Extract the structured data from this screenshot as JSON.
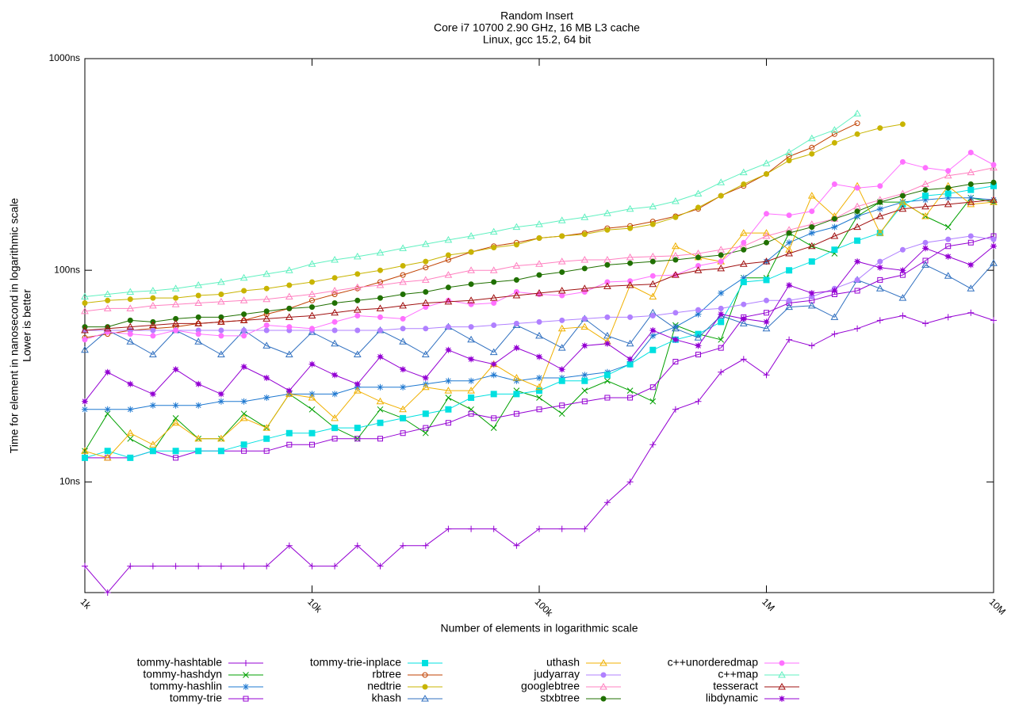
{
  "chart_data": {
    "type": "line",
    "title": "Random Insert",
    "subtitle": [
      "Core i7 10700 2.90 GHz, 16 MB L3 cache",
      "Linux, gcc 15.2, 64 bit"
    ],
    "ylabel": [
      "Time for element in nanosecond in logarithmic scale",
      "Lower is better"
    ],
    "xlabel": "Number of elements in logarithmic scale",
    "xscale": "log",
    "yscale": "log",
    "xlim": [
      1000,
      10000000
    ],
    "ylim": [
      3,
      1000
    ],
    "xticks": [
      {
        "value": 1000,
        "label": "1k"
      },
      {
        "value": 10000,
        "label": "10k"
      },
      {
        "value": 100000,
        "label": "100k"
      },
      {
        "value": 1000000,
        "label": "1M"
      },
      {
        "value": 10000000,
        "label": "10M"
      }
    ],
    "yticks": [
      {
        "value": 10,
        "label": "10ns"
      },
      {
        "value": 100,
        "label": "100ns"
      },
      {
        "value": 1000,
        "label": "1000ns"
      }
    ],
    "legend": "bottom",
    "x": [
      1000,
      1259,
      1585,
      1995,
      2512,
      3162,
      3981,
      5012,
      6310,
      7943,
      10000,
      12589,
      15849,
      19953,
      25119,
      31623,
      39811,
      50119,
      63096,
      79433,
      100000,
      125893,
      158489,
      199526,
      251189,
      316228,
      398107,
      501187,
      630957,
      794328,
      1000000,
      1258925,
      1584893,
      1995262,
      2511886,
      3162278,
      3981072,
      5011872,
      6309573,
      7943282,
      10000000
    ],
    "series": [
      {
        "name": "tommy-hashtable",
        "color": "#9400d3",
        "marker": "plus",
        "values": [
          4,
          3,
          4,
          4,
          4,
          4,
          4,
          4,
          4,
          5,
          4,
          4,
          5,
          4,
          5,
          5,
          6,
          6,
          6,
          5,
          6,
          6,
          6,
          8,
          10,
          15,
          22,
          24,
          33,
          38,
          32,
          47,
          44,
          50,
          53,
          58,
          61,
          56,
          60,
          63,
          58
        ]
      },
      {
        "name": "tommy-hashdyn",
        "color": "#00a000",
        "marker": "cross",
        "values": [
          14,
          21,
          16,
          14,
          20,
          16,
          16,
          21,
          18,
          26,
          22,
          18,
          16,
          22,
          20,
          17,
          25,
          22,
          18,
          27,
          25,
          21,
          27,
          30,
          27,
          24,
          55,
          50,
          47,
          92,
          92,
          150,
          130,
          120,
          180,
          210,
          210,
          180,
          160,
          220,
          210
        ]
      },
      {
        "name": "tommy-hashlin",
        "color": "#1e78d0",
        "marker": "star",
        "values": [
          22,
          22,
          22,
          23,
          23,
          23,
          24,
          24,
          25,
          26,
          26,
          26,
          28,
          28,
          28,
          29,
          30,
          30,
          32,
          30,
          31,
          31,
          32,
          33,
          36,
          49,
          54,
          62,
          78,
          92,
          110,
          135,
          150,
          160,
          180,
          195,
          210,
          215,
          220,
          220,
          215
        ]
      },
      {
        "name": "tommy-trie",
        "color": "#9400d3",
        "marker": "square",
        "values": [
          13,
          13,
          13,
          14,
          13,
          14,
          14,
          14,
          14,
          15,
          15,
          16,
          16,
          16,
          17,
          18,
          19,
          21,
          20,
          21,
          22,
          23,
          24,
          25,
          25,
          28,
          37,
          40,
          43,
          60,
          63,
          70,
          72,
          77,
          80,
          90,
          95,
          111,
          130,
          135,
          145
        ]
      },
      {
        "name": "tommy-trie-inplace",
        "color": "#00e0e0",
        "marker": "fsquare",
        "values": [
          13,
          14,
          13,
          14,
          14,
          14,
          14,
          15,
          16,
          17,
          17,
          18,
          18,
          19,
          20,
          21,
          22,
          25,
          26,
          26,
          27,
          30,
          30,
          32,
          36,
          42,
          47,
          50,
          57,
          88,
          90,
          100,
          110,
          125,
          138,
          150,
          205,
          225,
          230,
          240,
          250
        ]
      },
      {
        "name": "rbtree",
        "color": "#c04000",
        "marker": "circle",
        "values": [
          48,
          50,
          52,
          53,
          54,
          56,
          57,
          58,
          62,
          66,
          72,
          77,
          82,
          88,
          95,
          103,
          112,
          122,
          130,
          135,
          142,
          145,
          150,
          158,
          162,
          170,
          180,
          195,
          225,
          250,
          285,
          345,
          380,
          440,
          495,
          null,
          null,
          null,
          null,
          null,
          null
        ]
      },
      {
        "name": "nedtrie",
        "color": "#c8b400",
        "marker": "fcircle",
        "values": [
          70,
          72,
          73,
          74,
          74,
          76,
          77,
          80,
          82,
          85,
          88,
          92,
          96,
          100,
          105,
          110,
          118,
          122,
          128,
          132,
          142,
          145,
          148,
          155,
          158,
          165,
          178,
          198,
          225,
          255,
          285,
          330,
          355,
          400,
          440,
          470,
          490,
          null,
          null,
          null,
          null
        ]
      },
      {
        "name": "khash",
        "color": "#3070c0",
        "marker": "triangle",
        "values": [
          42,
          52,
          46,
          40,
          52,
          46,
          40,
          52,
          44,
          40,
          51,
          45,
          40,
          52,
          46,
          40,
          54,
          47,
          41,
          55,
          49,
          43,
          59,
          49,
          45,
          63,
          53,
          48,
          61,
          56,
          53,
          67,
          68,
          60,
          90,
          82,
          74,
          106,
          94,
          82,
          108
        ]
      },
      {
        "name": "uthash",
        "color": "#f0b000",
        "marker": "triangle",
        "values": [
          14,
          13,
          17,
          15,
          19,
          16,
          16,
          20,
          18,
          26,
          25,
          20,
          27,
          24,
          22,
          28,
          27,
          27,
          36,
          31,
          28,
          53,
          54,
          46,
          85,
          75,
          130,
          115,
          110,
          150,
          150,
          125,
          225,
          180,
          250,
          150,
          210,
          180,
          250,
          205,
          210
        ]
      },
      {
        "name": "judyarray",
        "color": "#b080ff",
        "marker": "fcircle",
        "values": [
          52,
          52,
          52,
          52,
          52,
          52,
          52,
          52,
          52,
          52,
          52,
          52,
          52,
          52,
          53,
          53,
          54,
          54,
          55,
          56,
          57,
          58,
          59,
          60,
          60,
          61,
          63,
          65,
          66,
          69,
          72,
          72,
          75,
          82,
          90,
          110,
          125,
          135,
          140,
          145,
          140
        ]
      },
      {
        "name": "googlebtree",
        "color": "#ff80c0",
        "marker": "triangle",
        "values": [
          64,
          66,
          66,
          68,
          69,
          70,
          71,
          72,
          73,
          75,
          77,
          80,
          83,
          85,
          88,
          90,
          95,
          100,
          100,
          105,
          107,
          110,
          112,
          112,
          115,
          116,
          117,
          120,
          125,
          130,
          145,
          155,
          165,
          175,
          200,
          215,
          230,
          255,
          280,
          290,
          305
        ]
      },
      {
        "name": "stxbtree",
        "color": "#207000",
        "marker": "fcircle",
        "values": [
          54,
          54,
          58,
          57,
          59,
          60,
          60,
          62,
          64,
          66,
          67,
          70,
          72,
          74,
          77,
          79,
          83,
          86,
          88,
          90,
          95,
          98,
          102,
          106,
          108,
          110,
          112,
          115,
          118,
          125,
          135,
          150,
          160,
          175,
          190,
          210,
          225,
          240,
          245,
          255,
          260
        ]
      },
      {
        "name": "c++unorderedmap",
        "color": "#ff70ff",
        "marker": "fcircle",
        "values": [
          47,
          51,
          50,
          49,
          52,
          50,
          49,
          49,
          55,
          54,
          53,
          57,
          61,
          60,
          59,
          67,
          72,
          69,
          70,
          79,
          77,
          76,
          79,
          88,
          89,
          94,
          95,
          105,
          110,
          135,
          185,
          182,
          190,
          255,
          245,
          250,
          325,
          305,
          295,
          360,
          315
        ]
      },
      {
        "name": "c++map",
        "color": "#60f0c0",
        "marker": "triangle",
        "values": [
          75,
          77,
          79,
          80,
          82,
          85,
          88,
          92,
          96,
          100,
          107,
          112,
          116,
          121,
          127,
          133,
          139,
          145,
          152,
          160,
          165,
          172,
          178,
          186,
          195,
          200,
          212,
          230,
          260,
          290,
          320,
          360,
          420,
          460,
          550,
          null,
          null,
          null,
          null,
          null,
          null
        ]
      },
      {
        "name": "tesseract",
        "color": "#a01010",
        "marker": "triangle",
        "values": [
          52,
          53,
          54,
          55,
          56,
          56,
          57,
          58,
          59,
          60,
          61,
          63,
          65,
          66,
          68,
          70,
          71,
          72,
          74,
          76,
          78,
          80,
          82,
          84,
          85,
          86,
          95,
          100,
          102,
          107,
          110,
          120,
          130,
          145,
          160,
          180,
          195,
          200,
          205,
          210,
          215
        ]
      },
      {
        "name": "libdynamic",
        "color": "#9400d3",
        "marker": "fstar",
        "values": [
          24,
          33,
          29,
          26,
          34,
          29,
          26,
          35,
          31,
          27,
          36,
          32,
          29,
          39,
          34,
          31,
          42,
          38,
          36,
          43,
          39,
          34,
          44,
          45,
          38,
          52,
          47,
          44,
          62,
          59,
          57,
          85,
          78,
          80,
          110,
          103,
          100,
          127,
          116,
          106,
          130
        ]
      }
    ]
  }
}
